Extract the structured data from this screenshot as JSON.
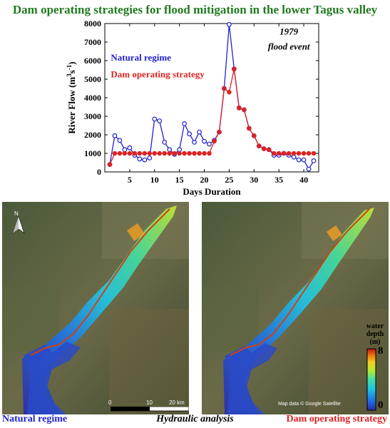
{
  "title": "Dam operating strategies for flood mitigation in the lower Tagus valley",
  "chart_data": {
    "type": "line",
    "xlabel": "Days Duration",
    "ylabel": "River Flow (m³s⁻¹)",
    "ylabel_main": "River Flow (m",
    "ylabel_sup1": "3",
    "ylabel_mid": "s",
    "ylabel_sup2": "-1",
    "ylabel_end": ")",
    "xlim": [
      0,
      43
    ],
    "ylim": [
      0,
      8000
    ],
    "xticks": [
      5,
      10,
      15,
      20,
      25,
      30,
      35,
      40
    ],
    "yticks": [
      0,
      1000,
      2000,
      3000,
      4000,
      5000,
      6000,
      7000,
      8000
    ],
    "annotation_line1": "1979",
    "annotation_line2": "flood event",
    "series": [
      {
        "name": "Natural regime",
        "color": "#2222cc",
        "marker": "open-circle",
        "x": [
          1,
          2,
          3,
          4,
          5,
          6,
          7,
          8,
          9,
          10,
          11,
          12,
          13,
          14,
          15,
          16,
          17,
          18,
          19,
          20,
          21,
          22,
          23,
          24,
          25,
          26,
          27,
          28,
          29,
          30,
          31,
          32,
          33,
          34,
          35,
          36,
          37,
          38,
          39,
          40,
          41,
          42
        ],
        "y": [
          400,
          1950,
          1700,
          1200,
          1300,
          900,
          700,
          650,
          750,
          2850,
          2750,
          1600,
          1200,
          950,
          1200,
          2600,
          2050,
          1600,
          2150,
          1650,
          1500,
          1700,
          2150,
          4500,
          7950,
          5550,
          3450,
          3350,
          2350,
          1950,
          1400,
          1250,
          1200,
          900,
          900,
          1000,
          900,
          800,
          650,
          650,
          150,
          600
        ]
      },
      {
        "name": "Dam operating strategy",
        "color": "#dd2222",
        "marker": "filled-circle",
        "x": [
          1,
          2,
          3,
          4,
          5,
          6,
          7,
          8,
          9,
          10,
          11,
          12,
          13,
          14,
          15,
          16,
          17,
          18,
          19,
          20,
          21,
          22,
          23,
          24,
          25,
          26,
          27,
          28,
          29,
          30,
          31,
          32,
          33,
          34,
          35,
          36,
          37,
          38,
          39,
          40,
          41,
          42
        ],
        "y": [
          400,
          1000,
          1000,
          1000,
          1000,
          1000,
          1000,
          1000,
          1000,
          1000,
          1000,
          1000,
          1000,
          1000,
          1000,
          1000,
          1000,
          1000,
          1000,
          1000,
          1000,
          1650,
          2150,
          4500,
          4300,
          5550,
          3450,
          3350,
          2350,
          1950,
          1400,
          1250,
          1200,
          1000,
          1000,
          1000,
          1000,
          1000,
          1000,
          1000,
          1000,
          1000
        ]
      }
    ]
  },
  "maps": {
    "left_label": "Natural regime",
    "center_label": "Hydraulic analysis",
    "right_label": "Dam operating strategy",
    "north": "N",
    "scale_labels": [
      "0",
      "10",
      "20 km"
    ],
    "attribution": "Map data © Google Satellite",
    "colorbar_title_line1": "water",
    "colorbar_title_line2": "depth",
    "colorbar_title_line3": "(m)",
    "colorbar_max": "8",
    "colorbar_min": "0",
    "colorbar_colors": [
      "#2a2aa8",
      "#1e6ee6",
      "#20c8e6",
      "#40e0a0",
      "#b8e830",
      "#f0d020",
      "#f07010",
      "#c01010"
    ]
  },
  "colors": {
    "title": "#1f7a1f",
    "natural": "#2222cc",
    "dam": "#dd2222"
  }
}
